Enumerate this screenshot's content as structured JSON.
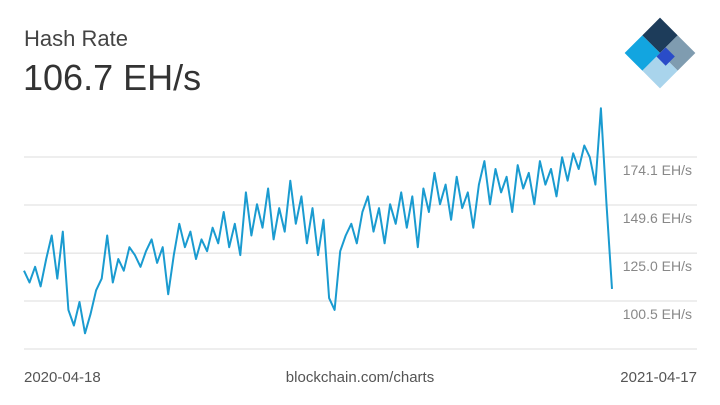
{
  "chart_data": {
    "type": "line",
    "title": "Hash Rate",
    "current_value": "106.7 EH/s",
    "source": "blockchain.com/charts",
    "color": "#1a9bd0",
    "xticks": [
      "2020-04-18",
      "2021-04-17"
    ],
    "ylim": [
      76.0,
      199.0
    ],
    "yticks": [
      {
        "value": 100.5,
        "label": "100.5 EH/s"
      },
      {
        "value": 125.0,
        "label": "125.0 EH/s"
      },
      {
        "value": 149.6,
        "label": "149.6 EH/s"
      },
      {
        "value": 174.1,
        "label": "174.1 EH/s"
      }
    ],
    "grid": true,
    "values": [
      116,
      110,
      118,
      108,
      122,
      134,
      112,
      136,
      96,
      88,
      100,
      84,
      94,
      106,
      112,
      134,
      110,
      122,
      116,
      128,
      124,
      118,
      126,
      132,
      120,
      128,
      104,
      124,
      140,
      128,
      136,
      122,
      132,
      126,
      138,
      130,
      146,
      128,
      140,
      124,
      156,
      134,
      150,
      138,
      158,
      132,
      148,
      136,
      162,
      140,
      154,
      130,
      148,
      124,
      142,
      102,
      96,
      126,
      134,
      140,
      130,
      146,
      154,
      136,
      148,
      130,
      150,
      140,
      156,
      138,
      154,
      128,
      158,
      146,
      166,
      150,
      160,
      142,
      164,
      148,
      156,
      138,
      160,
      172,
      150,
      168,
      156,
      164,
      146,
      170,
      158,
      166,
      150,
      172,
      160,
      168,
      154,
      174,
      162,
      176,
      168,
      180,
      174,
      160,
      199,
      150,
      106.7
    ]
  }
}
